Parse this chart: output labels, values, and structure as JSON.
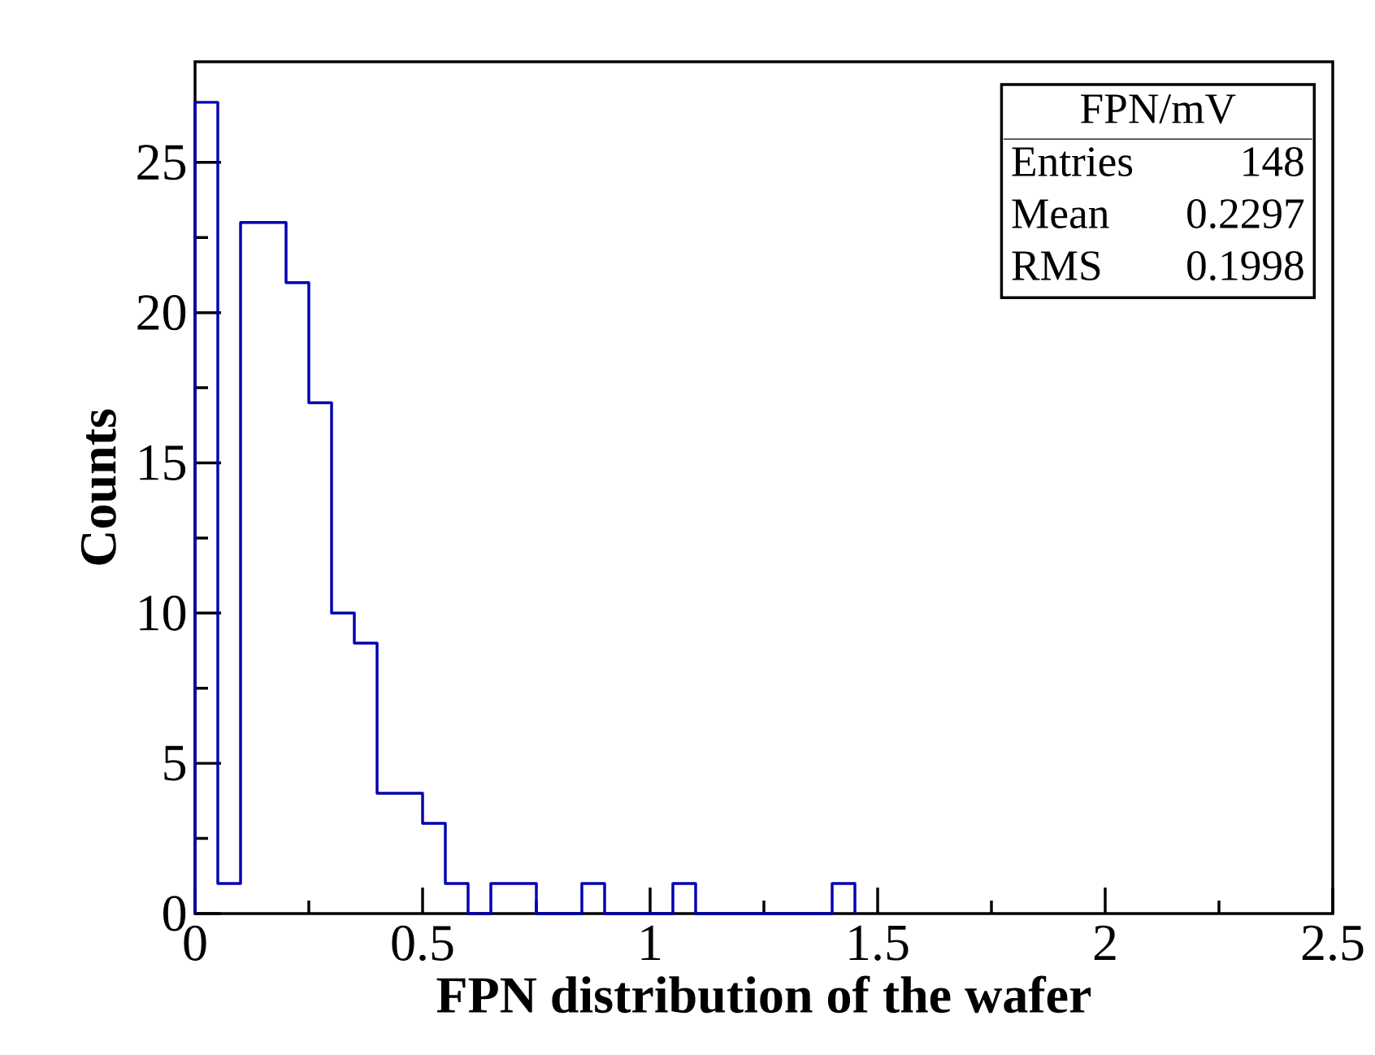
{
  "chart_data": {
    "type": "histogram",
    "xlabel": "FPN distribution of the wafer",
    "ylabel": "Counts",
    "bins": [
      0,
      0.05,
      0.1,
      0.15,
      0.2,
      0.25,
      0.3,
      0.35,
      0.4,
      0.45,
      0.5,
      0.55,
      0.6,
      0.65,
      0.7,
      0.75,
      0.8,
      0.85,
      0.9,
      0.95,
      1,
      1.05,
      1.1,
      1.15,
      1.2,
      1.25,
      1.3,
      1.35,
      1.4,
      1.45
    ],
    "values": [
      27,
      1,
      23,
      23,
      21,
      17,
      10,
      9,
      4,
      4,
      3,
      1,
      0,
      1,
      1,
      0,
      0,
      1,
      0,
      0,
      0,
      1,
      0,
      0,
      0,
      0,
      0,
      0,
      1
    ],
    "color": "#0000b0",
    "xlim": [
      0,
      2.5
    ],
    "ylim": [
      0,
      28.35
    ],
    "xticks": [
      0,
      0.5,
      1,
      1.5,
      2,
      2.5
    ],
    "yticks": [
      0,
      5,
      10,
      15,
      20,
      25
    ],
    "annotations": [
      "FPN/mV",
      "Entries",
      "148",
      "Mean",
      "0.2297",
      "RMS",
      "0.1998"
    ]
  }
}
